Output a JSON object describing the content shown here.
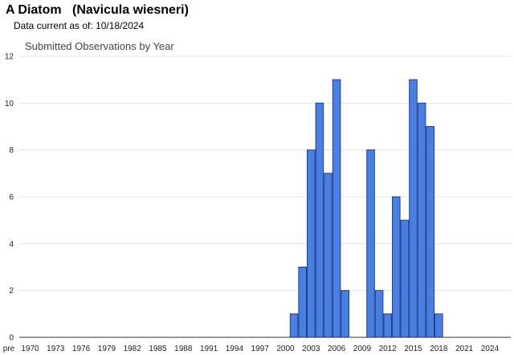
{
  "header": {
    "species_common": "A Diatom",
    "species_scientific": "(Navicula wiesneri)",
    "data_current_label": "Data current as of:",
    "data_current_date": "10/18/2024"
  },
  "chart_data": {
    "type": "bar",
    "title": "Submitted Observations by Year",
    "xlabel": "",
    "ylabel": "",
    "ylim": [
      0,
      12
    ],
    "yticks": [
      0,
      2,
      4,
      6,
      8,
      10,
      12
    ],
    "grid": true,
    "legend": "none",
    "bar_color": "#4a7fe0",
    "bar_edge_color": "#1f3f8f",
    "x_tick_labels": [
      "pre",
      "1970",
      "1973",
      "1976",
      "1979",
      "1982",
      "1985",
      "1988",
      "1991",
      "1994",
      "1997",
      "2000",
      "2003",
      "2006",
      "2009",
      "2012",
      "2015",
      "2018",
      "2021",
      "2024"
    ],
    "categories": [
      "pre",
      "1970",
      "1971",
      "1972",
      "1973",
      "1974",
      "1975",
      "1976",
      "1977",
      "1978",
      "1979",
      "1980",
      "1981",
      "1982",
      "1983",
      "1984",
      "1985",
      "1986",
      "1987",
      "1988",
      "1989",
      "1990",
      "1991",
      "1992",
      "1993",
      "1994",
      "1995",
      "1996",
      "1997",
      "1998",
      "1999",
      "2000",
      "2001",
      "2002",
      "2003",
      "2004",
      "2005",
      "2006",
      "2007",
      "2008",
      "2009",
      "2010",
      "2011",
      "2012",
      "2013",
      "2014",
      "2015",
      "2016",
      "2017",
      "2018",
      "2019",
      "2020",
      "2021",
      "2022",
      "2023",
      "2024"
    ],
    "values": [
      0,
      0,
      0,
      0,
      0,
      0,
      0,
      0,
      0,
      0,
      0,
      0,
      0,
      0,
      0,
      0,
      0,
      0,
      0,
      0,
      0,
      0,
      0,
      0,
      0,
      0,
      0,
      0,
      0,
      0,
      0,
      0,
      1,
      3,
      8,
      10,
      7,
      11,
      2,
      0,
      0,
      8,
      2,
      1,
      6,
      5,
      11,
      10,
      9,
      1,
      0,
      0,
      0,
      0,
      0,
      0
    ]
  }
}
